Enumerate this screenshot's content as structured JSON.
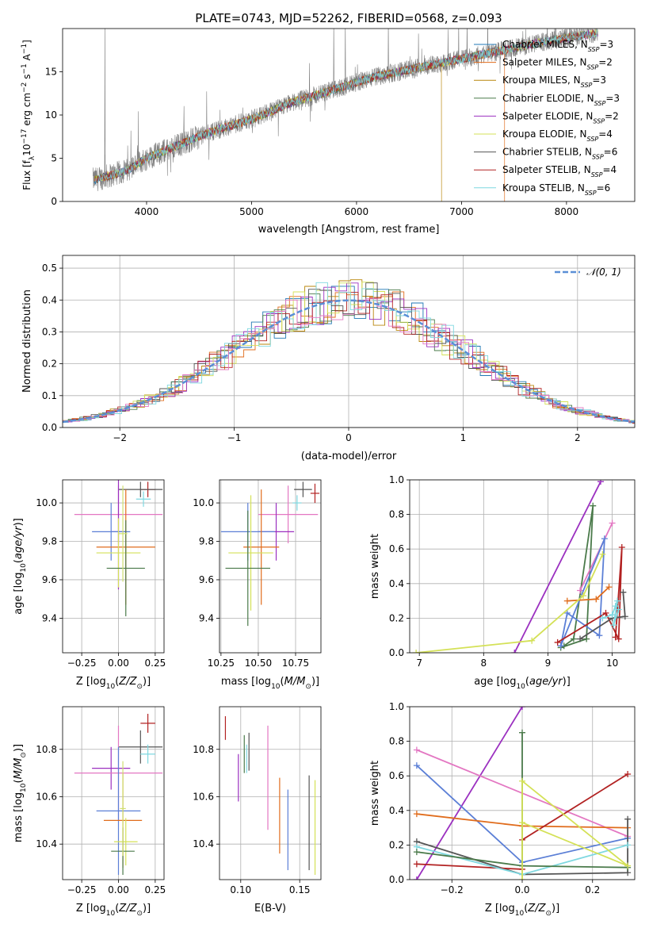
{
  "chart_data": [
    {
      "id": "spectrum",
      "type": "line",
      "title": "PLATE=0743, MJD=52262, FIBERID=0568, z=0.093",
      "xlabel": "wavelength [Angstrom, rest frame]",
      "ylabel": "Flux [fλ10⁻¹⁷ erg cm⁻² s⁻¹ A⁻¹]",
      "xlim": [
        3200,
        8650
      ],
      "ylim": [
        0,
        20
      ],
      "xticks": [
        4000,
        5000,
        6000,
        7000,
        8000
      ],
      "yticks": [
        0,
        5,
        10,
        15
      ],
      "grid": false,
      "legend": "top-right",
      "data_color": "#808080",
      "legend_entries": [
        {
          "name": "Chabrier MILES, N_SSP=3",
          "base": "Chabrier MILES, N",
          "sub": "SSP",
          "tail": "=3",
          "color": "#1f77b4"
        },
        {
          "name": "Salpeter MILES, N_SSP=2",
          "base": "Salpeter MILES, N",
          "sub": "SSP",
          "tail": "=2",
          "color": "#e06c1c"
        },
        {
          "name": "Kroupa MILES, N_SSP=3",
          "base": "Kroupa MILES, N",
          "sub": "SSP",
          "tail": "=3",
          "color": "#b8860b"
        },
        {
          "name": "Chabrier ELODIE, N_SSP=3",
          "base": "Chabrier ELODIE, N",
          "sub": "SSP",
          "tail": "=3",
          "color": "#4a7a4a"
        },
        {
          "name": "Salpeter ELODIE, N_SSP=2",
          "base": "Salpeter ELODIE, N",
          "sub": "SSP",
          "tail": "=2",
          "color": "#9b30c0"
        },
        {
          "name": "Kroupa ELODIE, N_SSP=4",
          "base": "Kroupa ELODIE, N",
          "sub": "SSP",
          "tail": "=4",
          "color": "#d4e157"
        },
        {
          "name": "Chabrier STELIB, N_SSP=6",
          "base": "Chabrier STELIB, N",
          "sub": "SSP",
          "tail": "=6",
          "color": "#555555"
        },
        {
          "name": "Salpeter STELIB, N_SSP=4",
          "base": "Salpeter STELIB, N",
          "sub": "SSP",
          "tail": "=4",
          "color": "#b22222"
        },
        {
          "name": "Kroupa STELIB, N_SSP=6",
          "base": "Kroupa STELIB, N",
          "sub": "SSP",
          "tail": "=6",
          "color": "#7fd8e0"
        }
      ],
      "continuum": {
        "x": [
          3500,
          3800,
          4000,
          4300,
          4600,
          5000,
          5400,
          5800,
          6200,
          6600,
          7000,
          7400,
          7800,
          8300
        ],
        "y": [
          2.5,
          3.5,
          5.0,
          6.5,
          8.0,
          9.5,
          11.5,
          13.0,
          14.5,
          15.5,
          16.5,
          17.5,
          18.5,
          19.5
        ]
      },
      "features": {
        "drop_lines": [
          6810,
          7410
        ],
        "spike_x": [
          3600,
          5780,
          5890,
          6300,
          7050
        ]
      }
    },
    {
      "id": "residual-hist",
      "type": "histogram",
      "xlabel": "(data-model)/error",
      "ylabel": "Normed distribution",
      "xlim": [
        -2.5,
        2.5
      ],
      "ylim": [
        0,
        0.54
      ],
      "xticks": [
        -2,
        -1,
        0,
        1,
        2
      ],
      "yticks": [
        0.0,
        0.1,
        0.2,
        0.3,
        0.4,
        0.5
      ],
      "grid": true,
      "legend": "top-right",
      "legend_label": "𝒩(0, 1)",
      "normal_color": "#5b8fd6",
      "bin_width": 0.1
    },
    {
      "id": "age-vs-Z",
      "type": "errorbar",
      "xlabel": "Z [log10(Z/Z⊙)]",
      "ylabel": "age  [log10(age/yr)]",
      "xlim": [
        -0.38,
        0.31
      ],
      "ylim": [
        9.22,
        10.12
      ],
      "xticks": [
        -0.25,
        0.0,
        0.25
      ],
      "yticks": [
        9.4,
        9.6,
        9.8,
        10.0
      ],
      "grid": true,
      "points": [
        {
          "color": "#b22222",
          "x": 0.2,
          "xerr": 0.05,
          "y": 10.07,
          "yerr": 0.04
        },
        {
          "color": "#555555",
          "x": 0.15,
          "xerr": 0.15,
          "y": 10.07,
          "yerr": 0.04
        },
        {
          "color": "#7fd8e0",
          "x": 0.17,
          "xerr": 0.05,
          "y": 10.02,
          "yerr": 0.04
        },
        {
          "color": "#e377c2",
          "x": 0.0,
          "xerr": 0.3,
          "y": 9.94,
          "yerr": 0.15
        },
        {
          "color": "#9b30c0",
          "x": 0.0,
          "xerr": 0.05,
          "y": 9.85,
          "yerr": 0.3
        },
        {
          "color": "#5b7fd6",
          "x": -0.05,
          "xerr": 0.13,
          "y": 9.85,
          "yerr": 0.15
        },
        {
          "color": "#e06c1c",
          "x": 0.05,
          "xerr": 0.2,
          "y": 9.77,
          "yerr": 0.3
        },
        {
          "color": "#d4e157",
          "x": 0.0,
          "xerr": 0.15,
          "y": 9.74,
          "yerr": 0.18
        },
        {
          "color": "#4a7a4a",
          "x": 0.05,
          "xerr": 0.13,
          "y": 9.66,
          "yerr": 0.25
        },
        {
          "color": "#cfe070",
          "x": 0.03,
          "xerr": 0.03,
          "y": 9.84,
          "yerr": 0.25
        }
      ]
    },
    {
      "id": "age-vs-mass",
      "type": "errorbar",
      "xlabel": "mass [log10(M/M⊙)]",
      "xlim": [
        10.24,
        10.92
      ],
      "ylim": [
        9.22,
        10.12
      ],
      "xticks": [
        10.25,
        10.5,
        10.75
      ],
      "yticks": [
        9.4,
        9.6,
        9.8,
        10.0
      ],
      "grid": true,
      "points": [
        {
          "color": "#b22222",
          "x": 10.88,
          "xerr": 0.03,
          "y": 10.05,
          "yerr": 0.05
        },
        {
          "color": "#555555",
          "x": 10.8,
          "xerr": 0.06,
          "y": 10.07,
          "yerr": 0.04
        },
        {
          "color": "#7fd8e0",
          "x": 10.76,
          "xerr": 0.03,
          "y": 10.0,
          "yerr": 0.04
        },
        {
          "color": "#e377c2",
          "x": 10.7,
          "xerr": 0.2,
          "y": 9.94,
          "yerr": 0.15
        },
        {
          "color": "#9b30c0",
          "x": 10.62,
          "xerr": 0.12,
          "y": 9.85,
          "yerr": 0.15
        },
        {
          "color": "#5b7fd6",
          "x": 10.43,
          "xerr": 0.18,
          "y": 9.85,
          "yerr": 0.15
        },
        {
          "color": "#e06c1c",
          "x": 10.52,
          "xerr": 0.12,
          "y": 9.77,
          "yerr": 0.3
        },
        {
          "color": "#d4e157",
          "x": 10.45,
          "xerr": 0.15,
          "y": 9.74,
          "yerr": 0.3
        },
        {
          "color": "#4a7a4a",
          "x": 10.43,
          "xerr": 0.15,
          "y": 9.66,
          "yerr": 0.3
        }
      ]
    },
    {
      "id": "weight-vs-age",
      "type": "line",
      "xlabel": "age  [log10(age/yr)]",
      "ylabel": "mass weight",
      "xlim": [
        6.85,
        10.35
      ],
      "ylim": [
        0,
        1
      ],
      "xticks": [
        7,
        8,
        9,
        10
      ],
      "yticks": [
        0.0,
        0.2,
        0.4,
        0.6,
        0.8,
        1.0
      ],
      "grid": true,
      "series": [
        {
          "color": "#9b30c0",
          "x": [
            8.48,
            9.82
          ],
          "y": [
            0.0,
            0.99
          ]
        },
        {
          "color": "#4a7a4a",
          "x": [
            9.2,
            9.6,
            9.7,
            9.4,
            9.25
          ],
          "y": [
            0.03,
            0.08,
            0.85,
            0.08,
            0.04
          ]
        },
        {
          "color": "#e377c2",
          "x": [
            9.5,
            10.0
          ],
          "y": [
            0.36,
            0.75
          ]
        },
        {
          "color": "#5b7fd6",
          "x": [
            9.2,
            9.3,
            9.8,
            9.88,
            9.2
          ],
          "y": [
            0.04,
            0.23,
            0.1,
            0.66,
            0.04
          ]
        },
        {
          "color": "#e06c1c",
          "x": [
            9.3,
            9.75,
            9.95
          ],
          "y": [
            0.3,
            0.31,
            0.38
          ]
        },
        {
          "color": "#d4e157",
          "x": [
            6.95,
            8.75,
            9.55,
            9.85
          ],
          "y": [
            0.0,
            0.07,
            0.33,
            0.57
          ]
        },
        {
          "color": "#b22222",
          "x": [
            9.15,
            9.9,
            10.1,
            10.15,
            10.05
          ],
          "y": [
            0.06,
            0.23,
            0.08,
            0.61,
            0.09
          ]
        },
        {
          "color": "#555555",
          "x": [
            9.5,
            10.0,
            10.2,
            10.17
          ],
          "y": [
            0.08,
            0.2,
            0.21,
            0.35
          ]
        },
        {
          "color": "#7fd8e0",
          "x": [
            9.85,
            10.0,
            10.05,
            10.08,
            10.02,
            10.1
          ],
          "y": [
            0.2,
            0.22,
            0.27,
            0.3,
            0.16,
            0.25
          ]
        }
      ]
    },
    {
      "id": "mass-vs-Z",
      "type": "errorbar",
      "xlabel": "Z [log10(Z/Z⊙)]",
      "ylabel": "mass [log10(M/M⊙)]",
      "xlim": [
        -0.38,
        0.31
      ],
      "ylim": [
        10.25,
        10.98
      ],
      "xticks": [
        -0.25,
        0.0,
        0.25
      ],
      "yticks": [
        10.4,
        10.6,
        10.8
      ],
      "grid": true,
      "points": [
        {
          "color": "#b22222",
          "x": 0.2,
          "xerr": 0.05,
          "y": 10.91,
          "yerr": 0.04
        },
        {
          "color": "#555555",
          "x": 0.15,
          "xerr": 0.15,
          "y": 10.81,
          "yerr": 0.07
        },
        {
          "color": "#7fd8e0",
          "x": 0.2,
          "xerr": 0.05,
          "y": 10.78,
          "yerr": 0.04
        },
        {
          "color": "#9b30c0",
          "x": -0.05,
          "xerr": 0.13,
          "y": 10.72,
          "yerr": 0.09
        },
        {
          "color": "#e377c2",
          "x": 0.0,
          "xerr": 0.3,
          "y": 10.7,
          "yerr": 0.2
        },
        {
          "color": "#5b7fd6",
          "x": 0.0,
          "xerr": 0.15,
          "y": 10.54,
          "yerr": 0.27
        },
        {
          "color": "#e06c1c",
          "x": 0.03,
          "xerr": 0.13,
          "y": 10.5,
          "yerr": 0.2
        },
        {
          "color": "#d4e157",
          "x": 0.05,
          "xerr": 0.08,
          "y": 10.41,
          "yerr": 0.1
        },
        {
          "color": "#4a7a4a",
          "x": 0.03,
          "xerr": 0.08,
          "y": 10.37,
          "yerr": 0.1
        },
        {
          "color": "#cfe070",
          "x": 0.03,
          "xerr": 0.02,
          "y": 10.55,
          "yerr": 0.2
        }
      ]
    },
    {
      "id": "mass-vs-ebv",
      "type": "errorbar",
      "xlabel": "E(B-V)",
      "xlim": [
        0.082,
        0.168
      ],
      "ylim": [
        10.25,
        10.98
      ],
      "xticks": [
        0.1,
        0.15
      ],
      "yticks": [
        10.4,
        10.6,
        10.8
      ],
      "grid": true,
      "points": [
        {
          "color": "#b22222",
          "x": 0.087,
          "xerr": 0,
          "y": 10.89,
          "yerr": 0.05
        },
        {
          "color": "#9b30c0",
          "x": 0.098,
          "xerr": 0,
          "y": 10.68,
          "yerr": 0.1
        },
        {
          "color": "#4a7a4a",
          "x": 0.103,
          "xerr": 0,
          "y": 10.78,
          "yerr": 0.08
        },
        {
          "color": "#555555",
          "x": 0.107,
          "xerr": 0,
          "y": 10.79,
          "yerr": 0.08
        },
        {
          "color": "#7fd8e0",
          "x": 0.105,
          "xerr": 0,
          "y": 10.76,
          "yerr": 0.06
        },
        {
          "color": "#e377c2",
          "x": 0.123,
          "xerr": 0,
          "y": 10.68,
          "yerr": 0.22
        },
        {
          "color": "#e06c1c",
          "x": 0.133,
          "xerr": 0,
          "y": 10.52,
          "yerr": 0.16
        },
        {
          "color": "#5b7fd6",
          "x": 0.14,
          "xerr": 0,
          "y": 10.46,
          "yerr": 0.17
        },
        {
          "color": "#555555",
          "x": 0.158,
          "xerr": 0,
          "y": 10.49,
          "yerr": 0.2
        },
        {
          "color": "#d4e157",
          "x": 0.163,
          "xerr": 0,
          "y": 10.47,
          "yerr": 0.2
        }
      ]
    },
    {
      "id": "weight-vs-Z",
      "type": "line",
      "xlabel": "Z [log10(Z/Z⊙)]",
      "ylabel": "mass weight",
      "xlim": [
        -0.32,
        0.32
      ],
      "ylim": [
        0,
        1
      ],
      "xticks": [
        -0.2,
        0.0,
        0.2
      ],
      "yticks": [
        0.0,
        0.2,
        0.4,
        0.6,
        0.8,
        1.0
      ],
      "grid": true,
      "series": [
        {
          "color": "#9b30c0",
          "x": [
            -0.3,
            0.0
          ],
          "y": [
            0.0,
            1.0
          ]
        },
        {
          "color": "#e377c2",
          "x": [
            -0.3,
            0.3
          ],
          "y": [
            0.75,
            0.25
          ]
        },
        {
          "color": "#5b7fd6",
          "x": [
            -0.3,
            0.0,
            0.3
          ],
          "y": [
            0.66,
            0.1,
            0.24
          ]
        },
        {
          "color": "#e06c1c",
          "x": [
            -0.3,
            0.0,
            0.3
          ],
          "y": [
            0.38,
            0.31,
            0.3
          ]
        },
        {
          "color": "#555555",
          "x": [
            -0.3,
            0.0,
            0.3,
            0.3
          ],
          "y": [
            0.22,
            0.03,
            0.04,
            0.35
          ]
        },
        {
          "color": "#b22222",
          "x": [
            -0.3,
            0.0,
            0.0,
            0.3
          ],
          "y": [
            0.09,
            0.06,
            0.23,
            0.61
          ]
        },
        {
          "color": "#7fd8e0",
          "x": [
            -0.3,
            0.0,
            0.3
          ],
          "y": [
            0.19,
            0.03,
            0.2
          ]
        },
        {
          "color": "#4a7a4a",
          "x": [
            -0.3,
            0.0,
            0.0,
            0.0,
            0.3
          ],
          "y": [
            0.16,
            0.08,
            0.85,
            0.08,
            0.07
          ]
        },
        {
          "color": "#d4e157",
          "x": [
            0.0,
            0.0,
            0.3,
            0.0
          ],
          "y": [
            0.0,
            0.57,
            0.08,
            0.33
          ]
        }
      ]
    }
  ]
}
